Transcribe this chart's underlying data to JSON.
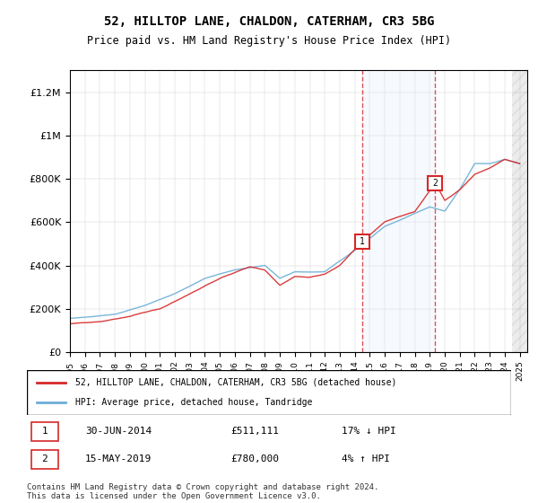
{
  "title": "52, HILLTOP LANE, CHALDON, CATERHAM, CR3 5BG",
  "subtitle": "Price paid vs. HM Land Registry's House Price Index (HPI)",
  "legend_line1": "52, HILLTOP LANE, CHALDON, CATERHAM, CR3 5BG (detached house)",
  "legend_line2": "HPI: Average price, detached house, Tandridge",
  "transaction1_label": "1",
  "transaction1_date": "30-JUN-2014",
  "transaction1_price": "£511,111",
  "transaction1_hpi": "17% ↓ HPI",
  "transaction2_label": "2",
  "transaction2_date": "15-MAY-2019",
  "transaction2_price": "£780,000",
  "transaction2_hpi": "4% ↑ HPI",
  "footer": "Contains HM Land Registry data © Crown copyright and database right 2024.\nThis data is licensed under the Open Government Licence v3.0.",
  "hpi_color": "#6baed6",
  "price_color": "#d62728",
  "transaction1_x": 2014.5,
  "transaction2_x": 2019.37,
  "transaction1_y": 511111,
  "transaction2_y": 780000,
  "ylim": [
    0,
    1300000
  ],
  "xlim_start": 1995,
  "xlim_end": 2025.5,
  "background_hatch_color": "#e8f0e8",
  "shaded_region_color": "#ddeeff"
}
